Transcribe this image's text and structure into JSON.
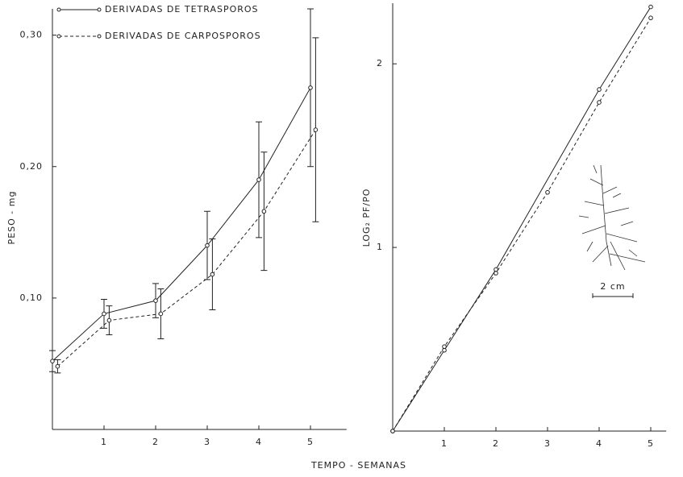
{
  "chart_data": [
    {
      "type": "line",
      "xlabel": "TEMPO - SEMANAS",
      "ylabel": "PESO - mg",
      "xlim": [
        0,
        5.7
      ],
      "ylim": [
        0,
        0.32
      ],
      "xticks": [
        1,
        2,
        3,
        4,
        5
      ],
      "yticks": [
        {
          "value": 0.1,
          "label": "0,10"
        },
        {
          "value": 0.2,
          "label": "0,20"
        },
        {
          "value": 0.3,
          "label": "0,30"
        }
      ],
      "legend": "upper left",
      "series": [
        {
          "name": "DERIVADAS DE TETRASPOROS",
          "color": "#222222",
          "linestyle": "solid",
          "x": [
            0,
            1,
            2,
            3,
            4,
            5
          ],
          "values": [
            0.052,
            0.088,
            0.098,
            0.14,
            0.19,
            0.26
          ],
          "errors": [
            0.008,
            0.011,
            0.013,
            0.026,
            0.044,
            0.06
          ]
        },
        {
          "name": "DERIVADAS DE CARPOSPOROS",
          "color": "#222222",
          "linestyle": "dashed",
          "x": [
            0.1,
            1.1,
            2.1,
            3.1,
            4.1,
            5.1
          ],
          "values": [
            0.048,
            0.083,
            0.088,
            0.118,
            0.166,
            0.228
          ],
          "errors": [
            0.005,
            0.011,
            0.019,
            0.027,
            0.045,
            0.07
          ]
        }
      ]
    },
    {
      "type": "line",
      "ylabel": "LOG₂ PF/PO",
      "annotation": "2 cm",
      "xlim": [
        0,
        5.3
      ],
      "ylim": [
        0,
        2.33
      ],
      "xticks": [
        1,
        2,
        3,
        4,
        5
      ],
      "yticks": [
        1,
        2
      ],
      "series": [
        {
          "color": "#222222",
          "linestyle": "solid",
          "x": [
            0,
            1,
            2,
            4,
            5
          ],
          "values": [
            0,
            0.44,
            0.88,
            1.86,
            2.31
          ]
        },
        {
          "color": "#222222",
          "linestyle": "dashed",
          "x": [
            0,
            1,
            2,
            3,
            4,
            5
          ],
          "values": [
            0,
            0.46,
            0.86,
            1.3,
            1.79,
            2.25
          ]
        }
      ]
    }
  ]
}
